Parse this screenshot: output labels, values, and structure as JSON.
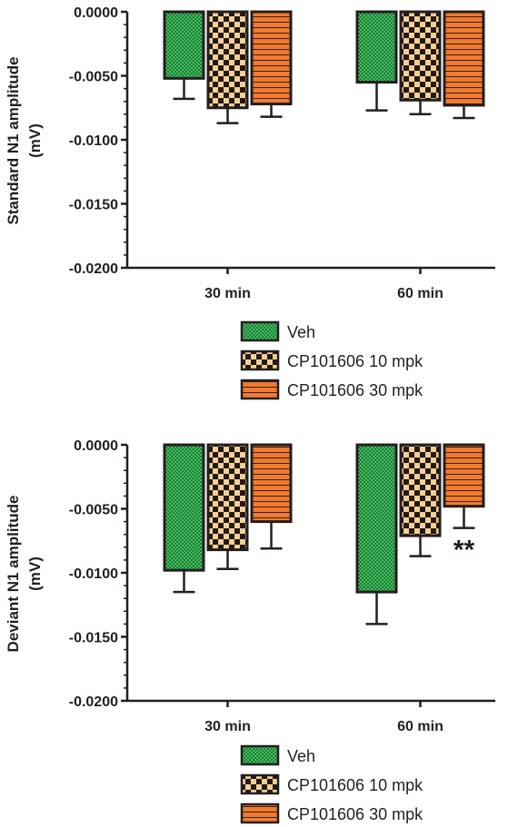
{
  "chart_data": [
    {
      "type": "bar",
      "ylabel_lines": [
        "Standard N1 amplitude",
        "(mV)"
      ],
      "categories": [
        "30 min",
        "60 min"
      ],
      "ylim": [
        -0.02,
        0
      ],
      "yticks": [
        "0.0000",
        "-0.0050",
        "-0.0100",
        "-0.0150",
        "-0.0200"
      ],
      "ytick_values": [
        0,
        -0.005,
        -0.01,
        -0.015,
        -0.02
      ],
      "series": [
        {
          "name": "Veh",
          "values": [
            -0.0052,
            -0.0055
          ],
          "error": [
            0.0016,
            0.0022
          ]
        },
        {
          "name": "CP101606 10 mpk",
          "values": [
            -0.0075,
            -0.0069
          ],
          "error": [
            0.0012,
            0.0011
          ]
        },
        {
          "name": "CP101606 30 mpk",
          "values": [
            -0.0072,
            -0.0073
          ],
          "error": [
            0.001,
            0.001
          ]
        }
      ],
      "annotations": [],
      "legend_position": "bottom"
    },
    {
      "type": "bar",
      "ylabel_lines": [
        "Deviant N1 amplitude",
        "(mV)"
      ],
      "categories": [
        "30 min",
        "60 min"
      ],
      "ylim": [
        -0.02,
        0
      ],
      "yticks": [
        "0.0000",
        "-0.0050",
        "-0.0100",
        "-0.0150",
        "-0.0200"
      ],
      "ytick_values": [
        0,
        -0.005,
        -0.01,
        -0.015,
        -0.02
      ],
      "series": [
        {
          "name": "Veh",
          "values": [
            -0.0098,
            -0.0115
          ],
          "error": [
            0.0017,
            0.0025
          ]
        },
        {
          "name": "CP101606 10 mpk",
          "values": [
            -0.0082,
            -0.0071
          ],
          "error": [
            0.0015,
            0.0016
          ]
        },
        {
          "name": "CP101606 30 mpk",
          "values": [
            -0.006,
            -0.0048
          ],
          "error": [
            0.0021,
            0.0017
          ]
        }
      ],
      "annotations": [
        {
          "text": "**",
          "category": "60 min",
          "series": "CP101606 30 mpk"
        }
      ],
      "legend_position": "bottom"
    }
  ],
  "colors": {
    "veh": "#1a7a35",
    "veh_dot": "#48c060",
    "mpk10_light": "#f6cf98",
    "mpk10_dark": "#221a12",
    "mpk30": "#f07a30",
    "mpk30_line": "#3a2010",
    "axis": "#231f20"
  },
  "pattern_names": [
    "veh-pattern",
    "checker-pattern",
    "stripe-pattern"
  ]
}
